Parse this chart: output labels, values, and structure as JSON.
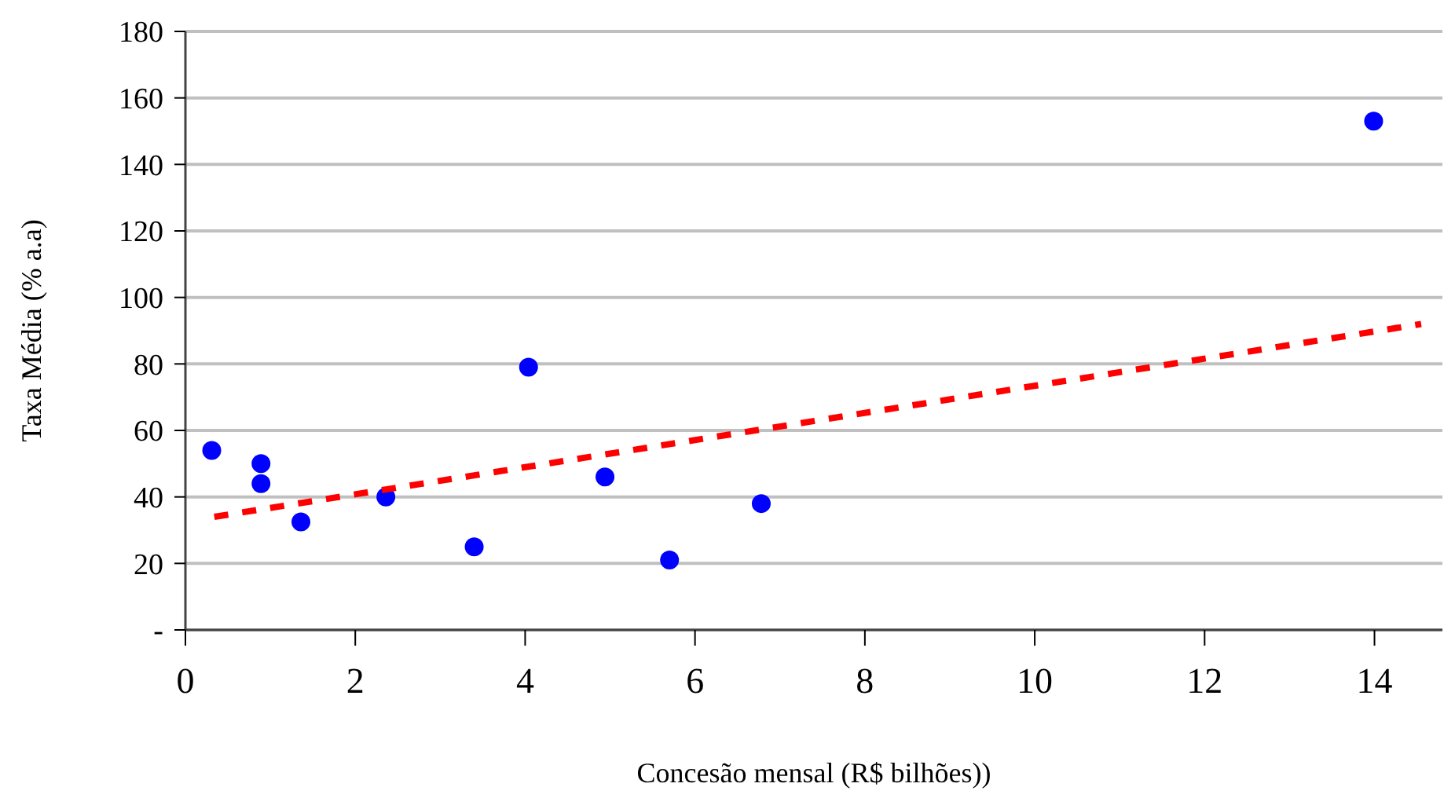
{
  "chart_data": {
    "type": "scatter",
    "xlabel": "Concesão mensal (R$ bilhões))",
    "ylabel": "Taxa Média (% a.a)",
    "xlim": [
      0,
      14.8
    ],
    "xticks": [
      0,
      2,
      4,
      6,
      8,
      10,
      12,
      14
    ],
    "ylim": [
      0,
      180
    ],
    "yticks": [
      {
        "value": 0,
        "label": "-"
      },
      20,
      40,
      60,
      80,
      100,
      120,
      140,
      160,
      180
    ],
    "grid": "y",
    "series": [
      {
        "color": "#0000ff",
        "marker": "circle",
        "x": [
          0.31,
          0.89,
          0.89,
          1.36,
          2.36,
          3.4,
          4.04,
          4.94,
          5.7,
          6.78,
          13.99
        ],
        "values": [
          54,
          50,
          44,
          32.5,
          40,
          25,
          79,
          46,
          21,
          38,
          153
        ]
      },
      {
        "type": "line",
        "color": "#ff0000",
        "line_style": "dashed",
        "marker": "none",
        "x": [
          0.34,
          14.55
        ],
        "values": [
          34,
          92
        ]
      }
    ]
  }
}
